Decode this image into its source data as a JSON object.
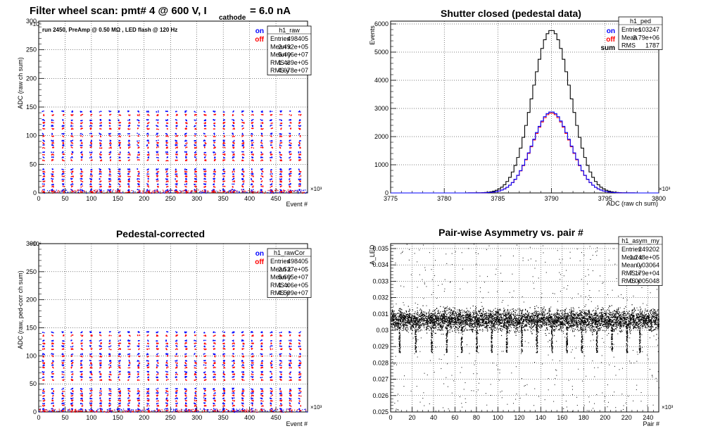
{
  "colors": {
    "on": "#0000ff",
    "off": "#ff0000",
    "sum": "#000000",
    "frame": "#000000"
  },
  "chart_data": [
    {
      "id": "raw",
      "type": "scatter",
      "title_parts": {
        "a": "Filter wheel scan: pmt#   4 @   600 V, I",
        "sub": "cathode",
        "b": "= 6.0 nA"
      },
      "subtitle": "run 2450, PreAmp @ 0.50 MΩ , LED flash @  120 Hz",
      "xlabel": "Event #",
      "ylabel": "ADC (raw ch sum)",
      "x_exponent": "×10³",
      "y_exponent": "×10⁶",
      "xlim": [
        0,
        510
      ],
      "ylim": [
        0,
        300
      ],
      "xticks": [
        0,
        50,
        100,
        150,
        200,
        250,
        300,
        350,
        400,
        450
      ],
      "yticks": [
        0,
        50,
        100,
        150,
        200,
        250,
        300
      ],
      "legend": {
        "on": "on",
        "off": "off"
      },
      "stats": {
        "name": "h1_raw",
        "rows": [
          [
            "Entries",
            "498405"
          ],
          [
            "Mean x",
            "2.492e+05"
          ],
          [
            "Mean y",
            "5.406e+07"
          ],
          [
            "RMS x",
            "1.439e+05"
          ],
          [
            "RMS y",
            "4.678e+07"
          ]
        ]
      },
      "series": [
        {
          "name": "on",
          "levels": [
            143,
            128,
            118,
            104,
            92,
            84,
            72,
            63,
            42,
            34,
            25,
            16,
            6
          ]
        },
        {
          "name": "off",
          "levels": [
            137,
            123,
            113,
            100,
            88,
            80,
            68,
            58,
            38,
            30,
            21,
            12,
            3
          ]
        }
      ],
      "bursts_x": [
        8,
        25,
        45,
        62,
        80,
        98,
        116,
        134,
        152,
        170,
        188,
        206,
        224,
        242,
        260,
        278,
        296,
        314,
        332,
        350,
        368,
        386,
        404,
        422,
        440,
        458,
        476,
        494
      ],
      "grid": true
    },
    {
      "id": "ped",
      "type": "histogram",
      "title": "Shutter closed (pedestal data)",
      "xlabel": "ADC (raw ch sum)",
      "ylabel": "Events",
      "x_exponent": "×10³",
      "xlim": [
        3775,
        3800
      ],
      "ylim": [
        0,
        6100
      ],
      "xticks": [
        3775,
        3780,
        3785,
        3790,
        3795,
        3800
      ],
      "yticks": [
        0,
        1000,
        2000,
        3000,
        4000,
        5000,
        6000
      ],
      "legend": {
        "on": "on",
        "off": "off",
        "sum": "sum"
      },
      "stats": {
        "name": "h1_ped",
        "rows": [
          [
            "Entries",
            "103247"
          ],
          [
            "Mean",
            "3.79e+06"
          ],
          [
            "RMS",
            "1787"
          ]
        ]
      },
      "series": [
        {
          "name": "on",
          "mean": 3790,
          "sigma": 1.79,
          "peak": 2880
        },
        {
          "name": "off",
          "mean": 3790,
          "sigma": 1.79,
          "peak": 2840
        },
        {
          "name": "sum",
          "mean": 3790,
          "sigma": 1.79,
          "peak": 5780
        }
      ],
      "grid": true
    },
    {
      "id": "rawcor",
      "type": "scatter",
      "title": "Pedestal-corrected",
      "xlabel": "Event #",
      "ylabel": "ADC (raw, ped-corr ch sum)",
      "x_exponent": "×10³",
      "y_exponent": "×10⁶",
      "xlim": [
        0,
        510
      ],
      "ylim": [
        0,
        300
      ],
      "xticks": [
        0,
        50,
        100,
        150,
        200,
        250,
        300,
        350,
        400,
        450
      ],
      "yticks": [
        0,
        50,
        100,
        150,
        200,
        250,
        300
      ],
      "legend": {
        "on": "on",
        "off": "off"
      },
      "stats": {
        "name": "h1_rawCor",
        "rows": [
          [
            "Entries",
            "498405"
          ],
          [
            "Mean x",
            "2.527e+05"
          ],
          [
            "Mean y",
            "5.605e+07"
          ],
          [
            "RMS x",
            "1.406e+05"
          ],
          [
            "RMS y",
            "4.599e+07"
          ]
        ]
      },
      "series": [
        {
          "name": "on",
          "levels": [
            143,
            128,
            118,
            104,
            92,
            84,
            72,
            63,
            42,
            34,
            25,
            16,
            6
          ]
        },
        {
          "name": "off",
          "levels": [
            137,
            123,
            113,
            100,
            88,
            80,
            68,
            58,
            38,
            30,
            21,
            12,
            3
          ]
        }
      ],
      "bursts_x": [
        8,
        25,
        45,
        62,
        80,
        98,
        116,
        134,
        152,
        170,
        188,
        206,
        224,
        242,
        260,
        278,
        296,
        314,
        332,
        350,
        368,
        386,
        404,
        422,
        440,
        458,
        476,
        494
      ],
      "grid": true
    },
    {
      "id": "asym",
      "type": "scatter",
      "title": "Pair-wise Asymmetry vs. pair #",
      "xlabel": "Pair #",
      "ylabel": "A_LED",
      "x_exponent": "×10³",
      "xlim": [
        0,
        250
      ],
      "ylim": [
        0.025,
        0.0353
      ],
      "xticks": [
        0,
        20,
        40,
        60,
        80,
        100,
        120,
        140,
        160,
        180,
        200,
        220,
        240
      ],
      "yticks": [
        0.025,
        0.026,
        0.027,
        0.028,
        0.029,
        0.03,
        0.031,
        0.032,
        0.033,
        0.034,
        0.035
      ],
      "stats": {
        "name": "h1_asym_my",
        "rows": [
          [
            "Entries",
            "249202"
          ],
          [
            "Mean x",
            "1.248e+05"
          ],
          [
            "Mean y",
            "0.03064"
          ],
          [
            "RMS x",
            "7.179e+04"
          ],
          [
            "RMS y",
            "0.0005048"
          ]
        ]
      },
      "band": {
        "center": 0.03065,
        "halfwidth": 0.0004
      },
      "dips_x": [
        8,
        23,
        38,
        52,
        66,
        80,
        94,
        108,
        122,
        136,
        150,
        164,
        178,
        192,
        206,
        220,
        232
      ],
      "grid": true
    }
  ]
}
